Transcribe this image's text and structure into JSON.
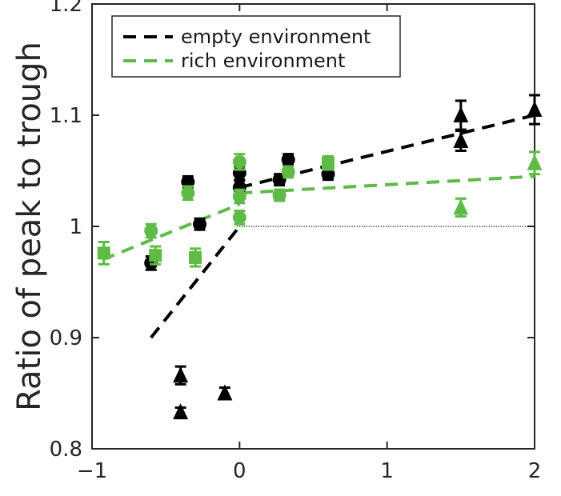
{
  "chart_data": {
    "type": "scatter",
    "title": "",
    "xlabel": "",
    "ylabel": "Ratio of peak to trough",
    "xlim": [
      -1,
      2
    ],
    "ylim": [
      0.8,
      1.2
    ],
    "xticks": [
      "−1",
      "0",
      "1",
      "2"
    ],
    "yticks": [
      "0.8",
      "0.9",
      "1",
      "1.1",
      "1.2"
    ],
    "grid": false,
    "legend_position": "top-left",
    "colors": {
      "empty": "#000000",
      "rich": "#5dbb46",
      "axis": "#262626"
    },
    "reference_line_y": 1.0,
    "legend": [
      {
        "label": "empty environment",
        "color": "#000000",
        "style": "dashed"
      },
      {
        "label": "rich environment",
        "color": "#5dbb46",
        "style": "dashed"
      }
    ],
    "fit_lines": [
      {
        "series": "empty",
        "color": "#000000",
        "segments": [
          [
            [
              -0.6,
              0.9
            ],
            [
              0,
              1.0
            ]
          ],
          [
            [
              0,
              1.035
            ],
            [
              2,
              1.1
            ]
          ]
        ]
      },
      {
        "series": "rich",
        "color": "#5dbb46",
        "segments": [
          [
            [
              -0.93,
              0.97
            ],
            [
              0,
              1.02
            ]
          ],
          [
            [
              0,
              1.03
            ],
            [
              2,
              1.045
            ]
          ]
        ]
      }
    ],
    "series": [
      {
        "group": "empty",
        "marker": "circle",
        "color": "#000000",
        "points": [
          {
            "x": -0.6,
            "y": 0.967,
            "err": 0.006
          },
          {
            "x": -0.35,
            "y": 1.04,
            "err": 0.005
          },
          {
            "x": -0.27,
            "y": 1.002,
            "err": 0.005
          },
          {
            "x": 0.0,
            "y": 1.048,
            "err": 0.006
          },
          {
            "x": 0.0,
            "y": 1.035,
            "err": 0.006
          },
          {
            "x": 0.27,
            "y": 1.042,
            "err": 0.005
          },
          {
            "x": 0.33,
            "y": 1.06,
            "err": 0.005
          },
          {
            "x": 0.6,
            "y": 1.047,
            "err": 0.005
          }
        ]
      },
      {
        "group": "empty",
        "marker": "triangle",
        "color": "#000000",
        "points": [
          {
            "x": -0.4,
            "y": 0.866,
            "err": 0.008
          },
          {
            "x": -0.4,
            "y": 0.833,
            "err": 0.004
          },
          {
            "x": -0.1,
            "y": 0.85,
            "err": 0.005
          },
          {
            "x": 1.5,
            "y": 1.1,
            "err": 0.013
          },
          {
            "x": 1.5,
            "y": 1.077,
            "err": 0.009
          },
          {
            "x": 2.0,
            "y": 1.105,
            "err": 0.013
          }
        ]
      },
      {
        "group": "rich",
        "marker": "square",
        "color": "#5dbb46",
        "points": [
          {
            "x": -0.92,
            "y": 0.976,
            "err": 0.01
          },
          {
            "x": -0.57,
            "y": 0.974,
            "err": 0.008
          },
          {
            "x": -0.3,
            "y": 0.972,
            "err": 0.008
          },
          {
            "x": 0.6,
            "y": 1.057,
            "err": 0.006
          }
        ]
      },
      {
        "group": "rich",
        "marker": "circle",
        "color": "#5dbb46",
        "points": [
          {
            "x": -0.6,
            "y": 0.996,
            "err": 0.006
          },
          {
            "x": -0.35,
            "y": 1.03,
            "err": 0.006
          },
          {
            "x": 0.0,
            "y": 1.058,
            "err": 0.007
          },
          {
            "x": 0.0,
            "y": 1.027,
            "err": 0.006
          },
          {
            "x": 0.0,
            "y": 1.008,
            "err": 0.006
          },
          {
            "x": 0.27,
            "y": 1.028,
            "err": 0.005
          },
          {
            "x": 0.33,
            "y": 1.049,
            "err": 0.005
          }
        ]
      },
      {
        "group": "rich",
        "marker": "triangle",
        "color": "#5dbb46",
        "points": [
          {
            "x": 1.5,
            "y": 1.017,
            "err": 0.008
          },
          {
            "x": 2.0,
            "y": 1.057,
            "err": 0.01
          }
        ]
      }
    ]
  }
}
